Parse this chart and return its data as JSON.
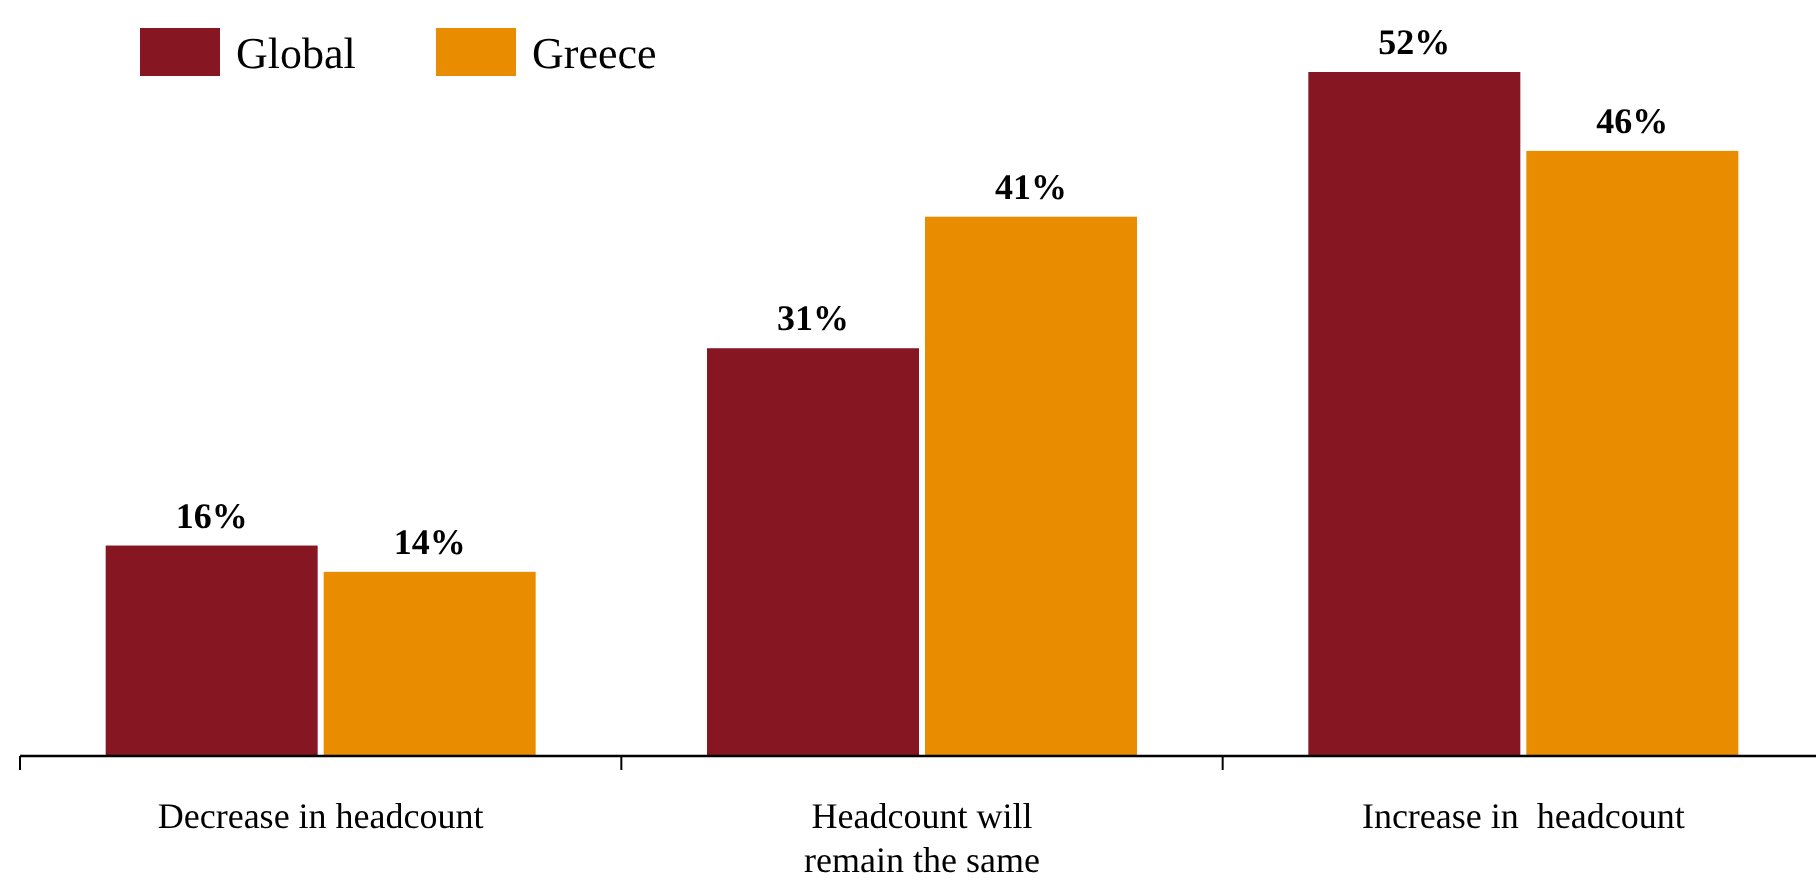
{
  "chart_data": {
    "type": "bar",
    "categories": [
      "Decrease in headcount",
      "Headcount will remain the same",
      "Increase in  headcount"
    ],
    "series": [
      {
        "name": "Global",
        "color": "#861622",
        "values": [
          16,
          31,
          52
        ],
        "value_labels": [
          "16%",
          "31%",
          "52%"
        ]
      },
      {
        "name": "Greece",
        "color": "#ea8c00",
        "values": [
          14,
          41,
          46
        ],
        "value_labels": [
          "14%",
          "41%",
          "46%"
        ]
      }
    ],
    "legend": "top left",
    "tick_labels": "x"
  }
}
